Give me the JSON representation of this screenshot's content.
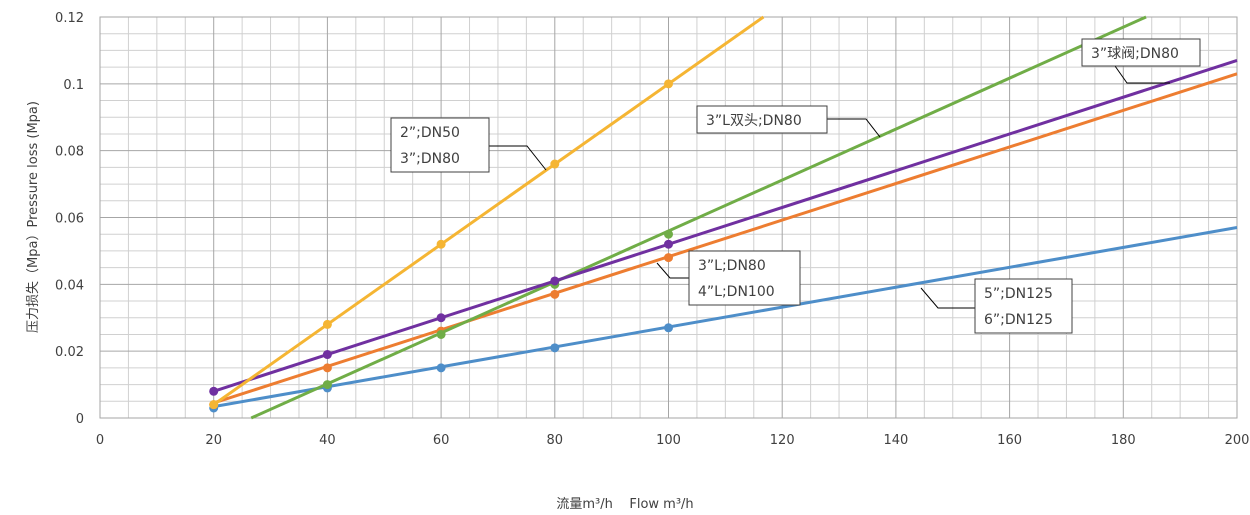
{
  "chart_data": {
    "type": "line",
    "title": "",
    "xlabel": "流量m³/h    Flow m³/h",
    "ylabel": "压力损失（Mpa）Pressure loss (Mpa)",
    "xlim": [
      0,
      200
    ],
    "ylim": [
      0,
      0.12
    ],
    "xticks": [
      "0",
      "20",
      "40",
      "60",
      "80",
      "100",
      "120",
      "140",
      "160",
      "180",
      "200"
    ],
    "yticks": [
      "0",
      "0.02",
      "0.04",
      "0.06",
      "0.08",
      "0.1",
      "0.12"
    ],
    "grid": true,
    "series": [
      {
        "color": "#4e8ec9",
        "points": [
          [
            20,
            0.003
          ],
          [
            40,
            0.009
          ],
          [
            60,
            0.015
          ],
          [
            80,
            0.021
          ],
          [
            100,
            0.027
          ]
        ],
        "trend": [
          [
            20,
            0.0034
          ],
          [
            200,
            0.057
          ]
        ]
      },
      {
        "color": "#ed7d31",
        "points": [
          [
            20,
            0.004
          ],
          [
            40,
            0.015
          ],
          [
            60,
            0.026
          ],
          [
            80,
            0.037
          ],
          [
            100,
            0.048
          ]
        ],
        "trend": [
          [
            20,
            0.0045
          ],
          [
            200,
            0.103
          ]
        ]
      },
      {
        "color": "#7030a0",
        "points": [
          [
            20,
            0.008
          ],
          [
            40,
            0.019
          ],
          [
            60,
            0.03
          ],
          [
            80,
            0.041
          ],
          [
            100,
            0.052
          ]
        ],
        "trend": [
          [
            20,
            0.008
          ],
          [
            200,
            0.107
          ]
        ]
      },
      {
        "color": "#70ad47",
        "points": [
          [
            40,
            0.01
          ],
          [
            60,
            0.025
          ],
          [
            80,
            0.04
          ],
          [
            100,
            0.055
          ]
        ],
        "trend": [
          [
            26.6,
            0
          ],
          [
            184,
            0.12
          ]
        ]
      },
      {
        "color": "#f5b533",
        "points": [
          [
            20,
            0.004
          ],
          [
            40,
            0.028
          ],
          [
            60,
            0.052
          ],
          [
            80,
            0.076
          ],
          [
            100,
            0.1
          ]
        ],
        "trend": [
          [
            20,
            0.004
          ],
          [
            116.7,
            0.12
          ]
        ]
      }
    ],
    "annotations": [
      {
        "lines": [
          "3”球阀;DN80"
        ]
      },
      {
        "lines": [
          "3”L双头;DN80"
        ]
      },
      {
        "lines": [
          "2”;DN50",
          "3”;DN80"
        ]
      },
      {
        "lines": [
          "3”L;DN80",
          "4”L;DN100"
        ]
      },
      {
        "lines": [
          "5”;DN125",
          "6”;DN125"
        ]
      }
    ]
  }
}
